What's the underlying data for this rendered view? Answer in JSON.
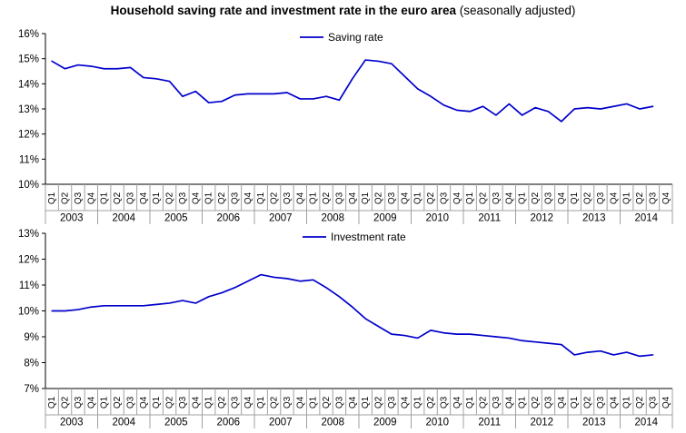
{
  "title": {
    "main": "Household saving rate and investment rate in the euro area",
    "suffix": " (seasonally adjusted)"
  },
  "colors": {
    "series_line": "#0000CC",
    "axis_line": "#000000",
    "category_grid": "#A0A0A0",
    "label_text": "#000000"
  },
  "x_axis": {
    "years": [
      "2003",
      "2004",
      "2005",
      "2006",
      "2007",
      "2008",
      "2009",
      "2010",
      "2011",
      "2012",
      "2013",
      "2014"
    ],
    "quarters": [
      "Q1",
      "Q2",
      "Q3",
      "Q4"
    ],
    "last_data_period": "2014 Q3"
  },
  "chart_data": [
    {
      "type": "line",
      "name": "saving-rate",
      "legend": "Saving rate",
      "legend_position": "top-center",
      "grid": "off",
      "ylim": [
        10,
        16
      ],
      "ytick_labels": [
        "10%",
        "11%",
        "12%",
        "13%",
        "14%",
        "15%",
        "16%"
      ],
      "categories_note": "quarterly 2003Q1-2014Q3",
      "values": [
        14.9,
        14.6,
        14.75,
        14.7,
        14.6,
        14.6,
        14.65,
        14.25,
        14.2,
        14.1,
        13.5,
        13.7,
        13.25,
        13.3,
        13.55,
        13.6,
        13.6,
        13.6,
        13.65,
        13.4,
        13.4,
        13.5,
        13.35,
        14.2,
        14.95,
        14.9,
        14.8,
        14.3,
        13.8,
        13.5,
        13.15,
        12.95,
        12.9,
        13.1,
        12.75,
        13.2,
        12.75,
        13.05,
        12.9,
        12.5,
        13.0,
        13.05,
        13.0,
        13.1,
        13.2,
        13.0,
        13.1
      ]
    },
    {
      "type": "line",
      "name": "investment-rate",
      "legend": "Investment rate",
      "legend_position": "top-center",
      "grid": "off",
      "ylim": [
        7,
        13
      ],
      "ytick_labels": [
        "7%",
        "8%",
        "9%",
        "10%",
        "11%",
        "12%",
        "13%"
      ],
      "categories_note": "quarterly 2003Q1-2014Q3",
      "values": [
        10.0,
        10.0,
        10.05,
        10.15,
        10.2,
        10.2,
        10.2,
        10.2,
        10.25,
        10.3,
        10.4,
        10.3,
        10.55,
        10.7,
        10.9,
        11.15,
        11.4,
        11.3,
        11.25,
        11.15,
        11.2,
        10.9,
        10.55,
        10.15,
        9.7,
        9.4,
        9.1,
        9.05,
        8.95,
        9.25,
        9.15,
        9.1,
        9.1,
        9.05,
        9.0,
        8.95,
        8.85,
        8.8,
        8.75,
        8.7,
        8.3,
        8.4,
        8.45,
        8.3,
        8.4,
        8.25,
        8.3
      ]
    }
  ]
}
